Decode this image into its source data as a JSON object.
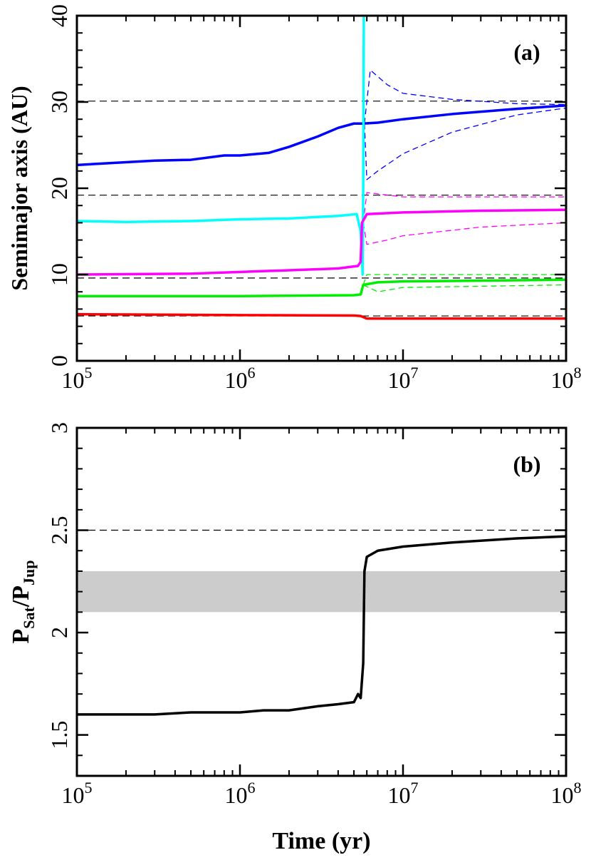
{
  "chart_data": [
    {
      "type": "line",
      "annotation": "(a)",
      "ylabel": "Semimajor axis (AU)",
      "xscale": "log",
      "xlim": [
        100000,
        100000000
      ],
      "xticks": [
        {
          "value": 100000,
          "label": "10",
          "sup": "5"
        },
        {
          "value": 1000000,
          "label": "10",
          "sup": "6"
        },
        {
          "value": 10000000,
          "label": "10",
          "sup": "7"
        },
        {
          "value": 100000000,
          "label": "10",
          "sup": "8"
        }
      ],
      "xminorticks": [
        200000,
        300000,
        400000,
        500000,
        600000,
        700000,
        800000,
        900000,
        2000000,
        3000000,
        4000000,
        5000000,
        6000000,
        7000000,
        8000000,
        9000000,
        20000000,
        30000000,
        40000000,
        50000000,
        60000000,
        70000000,
        80000000,
        90000000
      ],
      "ylim": [
        0,
        40
      ],
      "yticks": [
        0,
        10,
        20,
        30,
        40
      ],
      "yminorticks": [
        2,
        4,
        6,
        8,
        12,
        14,
        16,
        18,
        22,
        24,
        26,
        28,
        32,
        34,
        36,
        38
      ],
      "hlines": [
        30.1,
        19.2,
        9.6,
        5.2
      ],
      "series": [
        {
          "color": "#0000ff",
          "linestyle": "dashed",
          "x": [
            5800000,
            6300000,
            8000000,
            10000000,
            20000000,
            50000000,
            100000000
          ],
          "values": [
            27.5,
            33.7,
            32,
            31,
            30.3,
            29.8,
            29.7
          ]
        },
        {
          "color": "#0000ff",
          "linestyle": "dashed",
          "x": [
            5800000,
            6000000,
            7000000,
            10000000,
            20000000,
            50000000,
            100000000
          ],
          "values": [
            27.5,
            21,
            22,
            24,
            26.5,
            28.5,
            29.3
          ]
        },
        {
          "color": "#ff00ff",
          "linestyle": "dashed",
          "x": [
            5700000,
            6000000,
            10000000,
            100000000
          ],
          "values": [
            16,
            19.5,
            19,
            19
          ]
        },
        {
          "color": "#ff00ff",
          "linestyle": "dashed",
          "x": [
            5700000,
            6000000,
            8000000,
            10000000,
            30000000,
            100000000
          ],
          "values": [
            16,
            13.5,
            14,
            14.5,
            15.5,
            16
          ]
        },
        {
          "color": "#00ee00",
          "linestyle": "dashed",
          "x": [
            5700000,
            6000000,
            100000000
          ],
          "values": [
            8.8,
            10,
            10
          ]
        },
        {
          "color": "#00ee00",
          "linestyle": "dashed",
          "x": [
            5700000,
            7000000,
            10000000,
            100000000
          ],
          "values": [
            8.8,
            8,
            8.5,
            8.8
          ]
        },
        {
          "color": "#0000ff",
          "linestyle": "solid",
          "x": [
            100000,
            300000,
            500000,
            800000,
            1000000,
            1500000,
            2000000,
            3000000,
            4000000,
            5000000,
            5700000,
            7000000,
            10000000,
            20000000,
            50000000,
            100000000
          ],
          "values": [
            22.7,
            23.2,
            23.3,
            23.8,
            23.8,
            24.1,
            24.8,
            26,
            27,
            27.5,
            27.5,
            27.6,
            28,
            28.6,
            29.2,
            29.6
          ]
        },
        {
          "color": "#00ffff",
          "linestyle": "solid",
          "x": [
            100000,
            200000,
            500000,
            1000000,
            2000000,
            4000000,
            5200000,
            5500000,
            5600000,
            5650000,
            5700000,
            5750000
          ],
          "values": [
            16.2,
            16.1,
            16.2,
            16.4,
            16.5,
            16.8,
            17,
            15,
            12,
            10,
            20,
            40
          ]
        },
        {
          "color": "#ff00ff",
          "linestyle": "solid",
          "x": [
            100000,
            500000,
            1000000,
            2000000,
            4000000,
            5300000,
            5500000,
            5600000,
            6000000,
            10000000,
            30000000,
            100000000
          ],
          "values": [
            10,
            10.1,
            10.3,
            10.5,
            10.7,
            11,
            11.5,
            16,
            17,
            17.2,
            17.4,
            17.5
          ]
        },
        {
          "color": "#00ee00",
          "linestyle": "solid",
          "x": [
            100000,
            1000000,
            5000000,
            5500000,
            5700000,
            7000000,
            10000000,
            100000000
          ],
          "values": [
            7.5,
            7.5,
            7.6,
            7.7,
            8.8,
            9.1,
            9.2,
            9.4
          ]
        },
        {
          "color": "#ff0000",
          "linestyle": "solid",
          "x": [
            100000,
            1000000,
            5000000,
            5500000,
            6000000,
            10000000,
            100000000
          ],
          "values": [
            5.4,
            5.3,
            5.25,
            5.2,
            4.9,
            4.9,
            4.9
          ]
        }
      ]
    },
    {
      "type": "line",
      "annotation": "(b)",
      "ylabel": {
        "p1": "P",
        "sub1": "Sat",
        "p2": "/P",
        "sub2": "Jup"
      },
      "xlabel": "Time (yr)",
      "xscale": "log",
      "xlim": [
        100000,
        100000000
      ],
      "xticks": [
        {
          "value": 100000,
          "label": "10",
          "sup": "5"
        },
        {
          "value": 1000000,
          "label": "10",
          "sup": "6"
        },
        {
          "value": 10000000,
          "label": "10",
          "sup": "7"
        },
        {
          "value": 100000000,
          "label": "10",
          "sup": "8"
        }
      ],
      "xminorticks": [
        200000,
        300000,
        400000,
        500000,
        600000,
        700000,
        800000,
        900000,
        2000000,
        3000000,
        4000000,
        5000000,
        6000000,
        7000000,
        8000000,
        9000000,
        20000000,
        30000000,
        40000000,
        50000000,
        60000000,
        70000000,
        80000000,
        90000000
      ],
      "ylim": [
        1.3,
        3
      ],
      "yticks": [
        1.5,
        2,
        2.5,
        3
      ],
      "yminorticks": [
        1.4,
        1.6,
        1.7,
        1.8,
        1.9,
        2.1,
        2.2,
        2.3,
        2.4,
        2.6,
        2.7,
        2.8,
        2.9
      ],
      "band": [
        2.1,
        2.3
      ],
      "band_color": "#cccccc",
      "hlines": [
        2.5
      ],
      "series": [
        {
          "color": "#000000",
          "linestyle": "solid",
          "x": [
            100000,
            300000,
            500000,
            1000000,
            1400000,
            2000000,
            3000000,
            4000000,
            5000000,
            5300000,
            5500000,
            5700000,
            5800000,
            6000000,
            7000000,
            10000000,
            20000000,
            50000000,
            100000000
          ],
          "values": [
            1.6,
            1.6,
            1.61,
            1.61,
            1.62,
            1.62,
            1.64,
            1.65,
            1.66,
            1.7,
            1.68,
            1.85,
            2.3,
            2.37,
            2.4,
            2.42,
            2.44,
            2.46,
            2.47
          ]
        }
      ]
    }
  ]
}
